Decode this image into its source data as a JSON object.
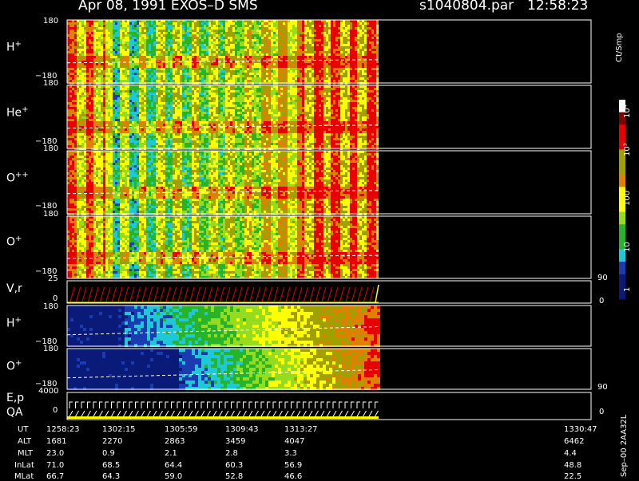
{
  "header": {
    "title": "Apr 08, 1991    EXOS–D SMS",
    "file": "s1040804.par",
    "time": "12:58:23"
  },
  "colorbar": {
    "label": "Ct/Smp",
    "ticks": [
      "10⁴",
      "10³",
      "100",
      "10",
      "1"
    ]
  },
  "panels": [
    {
      "name": "H",
      "sup": "+",
      "ymax": "180",
      "ymin": "−180"
    },
    {
      "name": "He",
      "sup": "+",
      "ymax": "180",
      "ymin": "−180"
    },
    {
      "name": "O",
      "sup": "++",
      "ymax": "180",
      "ymin": "−180"
    },
    {
      "name": "O",
      "sup": "+",
      "ymax": "180",
      "ymin": "−180"
    },
    {
      "name": "V,r",
      "sup": "",
      "ymax": "25",
      "ymin": "0",
      "right_max": "90",
      "right_min": "0"
    },
    {
      "name": "H",
      "sup": "+",
      "ymax": "180",
      "ymin": "−180"
    },
    {
      "name": "O",
      "sup": "+",
      "ymax": "180",
      "ymin": "−180"
    },
    {
      "name": "E,p",
      "sub": "QA",
      "sup": "",
      "ymax": "4000",
      "ymin": "0",
      "right_max": "90",
      "right_min": "0"
    }
  ],
  "footer": {
    "row_labels": [
      "UT",
      "ALT",
      "MLT",
      "InLat",
      "MLat"
    ],
    "columns": [
      [
        "1258:23",
        "1681",
        "23.0",
        "71.0",
        "66.7"
      ],
      [
        "1302:15",
        "2270",
        "0.9",
        "68.5",
        "64.3"
      ],
      [
        "1305:59",
        "2863",
        "2.1",
        "64.4",
        "59.0"
      ],
      [
        "1309:43",
        "3459",
        "2.8",
        "60.3",
        "52.8"
      ],
      [
        "1313:27",
        "4047",
        "3.3",
        "56.9",
        "46.6"
      ],
      [
        "1330:47",
        "6462",
        "4.4",
        "48.8",
        "22.5"
      ]
    ],
    "side_text": "Sep–00 2AA32L"
  },
  "chart_data": {
    "type": "heatmap",
    "title": "Apr 08, 1991    EXOS–D SMS",
    "x_tick_labels": [
      "1258:23",
      "1302:15",
      "1305:59",
      "1309:43",
      "1313:27",
      "1330:47"
    ],
    "colorscale_label": "Ct/Smp",
    "colorscale_ticks": [
      "1",
      "10",
      "100",
      "10³",
      "10⁴"
    ],
    "series": [
      {
        "name": "H+",
        "y_range": [
          -180,
          180
        ]
      },
      {
        "name": "He+",
        "y_range": [
          -180,
          180
        ]
      },
      {
        "name": "O++",
        "y_range": [
          -180,
          180
        ]
      },
      {
        "name": "O+",
        "y_range": [
          -180,
          180
        ]
      },
      {
        "name": "V,r",
        "y_range": [
          0,
          25
        ]
      },
      {
        "name": "H+",
        "y_range": [
          -180,
          180
        ]
      },
      {
        "name": "O+",
        "y_range": [
          -180,
          180
        ]
      },
      {
        "name": "E,p QA",
        "y_range": [
          0,
          4000
        ]
      }
    ],
    "colors": {
      "navy": "#0a1a78",
      "blue": "#1a3cb0",
      "cyan": "#1ec8d8",
      "green": "#28b428",
      "lime": "#96dc1e",
      "yellow": "#ffff00",
      "olive": "#a0a000",
      "orange": "#e08000",
      "red": "#e80000",
      "darkred": "#800000",
      "white": "#ffffff"
    }
  }
}
